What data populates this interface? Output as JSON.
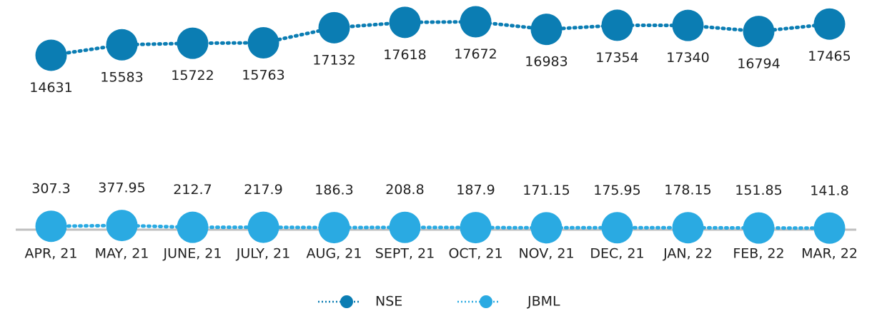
{
  "chart_data": {
    "type": "line",
    "categories": [
      "APR, 21",
      "MAY, 21",
      "JUNE, 21",
      "JULY, 21",
      "AUG, 21",
      "SEPT, 21",
      "OCT, 21",
      "NOV, 21",
      "DEC, 21",
      "JAN, 22",
      "FEB, 22",
      "MAR, 22"
    ],
    "series": [
      {
        "name": "NSE",
        "color": "#0b7db3",
        "axis": "y2",
        "values": [
          14631,
          15583,
          15722,
          15763,
          17132,
          17618,
          17672,
          16983,
          17354,
          17340,
          16794,
          17465
        ]
      },
      {
        "name": "JBML",
        "color": "#2aaae2",
        "values": [
          307.3,
          377.95,
          212.7,
          217.9,
          186.3,
          208.8,
          187.9,
          171.15,
          175.95,
          178.15,
          151.85,
          141.8
        ]
      }
    ],
    "ylim": [
      0,
      20000
    ],
    "y2lim": [
      -1200,
      19000
    ],
    "legend": "bottom"
  }
}
